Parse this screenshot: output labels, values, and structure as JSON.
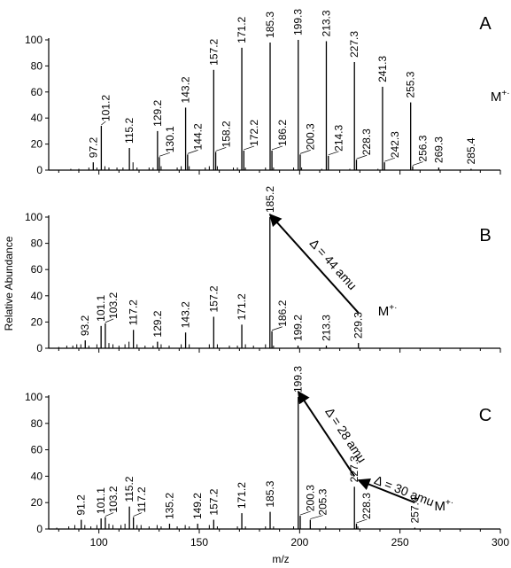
{
  "figure": {
    "ylabel": "Relative Abundance",
    "xlabel": "m/z",
    "x_ticks": [
      100,
      150,
      200,
      250,
      300
    ],
    "y_ticks": [
      0,
      20,
      40,
      60,
      80,
      100
    ]
  },
  "chart_data": [
    {
      "type": "bar",
      "panel": "A",
      "xlim": [
        75,
        300
      ],
      "ylim": [
        0,
        100
      ],
      "peaks": [
        {
          "mz": 97.2,
          "intensity": 6,
          "label": "97.2"
        },
        {
          "mz": 101.2,
          "intensity": 34,
          "label": "101.2"
        },
        {
          "mz": 115.2,
          "intensity": 17,
          "label": "115.2"
        },
        {
          "mz": 129.2,
          "intensity": 30,
          "label": "129.2"
        },
        {
          "mz": 130.1,
          "intensity": 10,
          "label": "130.1"
        },
        {
          "mz": 143.2,
          "intensity": 48,
          "label": "143.2"
        },
        {
          "mz": 144.2,
          "intensity": 12,
          "label": "144.2"
        },
        {
          "mz": 157.2,
          "intensity": 77,
          "label": "157.2"
        },
        {
          "mz": 158.2,
          "intensity": 14,
          "label": "158.2"
        },
        {
          "mz": 171.2,
          "intensity": 94,
          "label": "171.2"
        },
        {
          "mz": 172.2,
          "intensity": 15,
          "label": "172.2"
        },
        {
          "mz": 185.3,
          "intensity": 98,
          "label": "185.3"
        },
        {
          "mz": 186.2,
          "intensity": 15,
          "label": "186.2"
        },
        {
          "mz": 199.3,
          "intensity": 100,
          "label": "199.3"
        },
        {
          "mz": 200.3,
          "intensity": 12,
          "label": "200.3"
        },
        {
          "mz": 213.3,
          "intensity": 99,
          "label": "213.3"
        },
        {
          "mz": 214.3,
          "intensity": 11,
          "label": "214.3"
        },
        {
          "mz": 227.3,
          "intensity": 83,
          "label": "227.3"
        },
        {
          "mz": 228.3,
          "intensity": 8,
          "label": "228.3"
        },
        {
          "mz": 241.3,
          "intensity": 64,
          "label": "241.3"
        },
        {
          "mz": 242.3,
          "intensity": 6,
          "label": "242.3"
        },
        {
          "mz": 255.3,
          "intensity": 52,
          "label": "255.3"
        },
        {
          "mz": 256.3,
          "intensity": 3,
          "label": "256.3"
        },
        {
          "mz": 269.3,
          "intensity": 2,
          "label": "269.3"
        },
        {
          "mz": 285.4,
          "intensity": 1,
          "label": "285.4"
        }
      ],
      "minor_peaks": [
        {
          "mz": 86,
          "intensity": 1
        },
        {
          "mz": 90,
          "intensity": 1
        },
        {
          "mz": 95,
          "intensity": 2
        },
        {
          "mz": 99,
          "intensity": 2
        },
        {
          "mz": 103,
          "intensity": 3
        },
        {
          "mz": 105,
          "intensity": 2
        },
        {
          "mz": 109,
          "intensity": 2
        },
        {
          "mz": 112,
          "intensity": 2
        },
        {
          "mz": 117,
          "intensity": 6
        },
        {
          "mz": 119,
          "intensity": 2
        },
        {
          "mz": 125,
          "intensity": 2
        },
        {
          "mz": 127,
          "intensity": 2
        },
        {
          "mz": 131,
          "intensity": 3
        },
        {
          "mz": 139,
          "intensity": 2
        },
        {
          "mz": 141,
          "intensity": 3
        },
        {
          "mz": 145,
          "intensity": 3
        },
        {
          "mz": 153,
          "intensity": 2
        },
        {
          "mz": 155,
          "intensity": 3
        },
        {
          "mz": 159,
          "intensity": 3
        },
        {
          "mz": 167,
          "intensity": 2
        },
        {
          "mz": 169,
          "intensity": 2
        },
        {
          "mz": 173,
          "intensity": 2
        },
        {
          "mz": 183,
          "intensity": 2
        },
        {
          "mz": 187,
          "intensity": 2
        },
        {
          "mz": 197,
          "intensity": 2
        },
        {
          "mz": 201,
          "intensity": 2
        },
        {
          "mz": 211,
          "intensity": 1
        },
        {
          "mz": 225,
          "intensity": 1
        },
        {
          "mz": 239,
          "intensity": 1
        }
      ],
      "annotations": [
        {
          "text": "M",
          "sup": "+·",
          "near_mz": 285.4,
          "level": 53
        }
      ]
    },
    {
      "type": "bar",
      "panel": "B",
      "xlim": [
        75,
        300
      ],
      "ylim": [
        0,
        100
      ],
      "peaks": [
        {
          "mz": 93.2,
          "intensity": 6,
          "label": "93.2"
        },
        {
          "mz": 101.1,
          "intensity": 17,
          "label": "101.1"
        },
        {
          "mz": 103.2,
          "intensity": 19,
          "label": "103.2"
        },
        {
          "mz": 117.2,
          "intensity": 14,
          "label": "117.2"
        },
        {
          "mz": 129.2,
          "intensity": 5,
          "label": "129.2"
        },
        {
          "mz": 143.2,
          "intensity": 12,
          "label": "143.2"
        },
        {
          "mz": 157.2,
          "intensity": 24,
          "label": "157.2"
        },
        {
          "mz": 171.2,
          "intensity": 18,
          "label": "171.2"
        },
        {
          "mz": 185.2,
          "intensity": 100,
          "label": "185.2"
        },
        {
          "mz": 186.2,
          "intensity": 13,
          "label": "186.2"
        },
        {
          "mz": 199.2,
          "intensity": 2,
          "label": "199.2"
        },
        {
          "mz": 213.3,
          "intensity": 2,
          "label": "213.3"
        },
        {
          "mz": 229.3,
          "intensity": 4,
          "label": "229.3"
        }
      ],
      "minor_peaks": [
        {
          "mz": 80,
          "intensity": 1
        },
        {
          "mz": 84,
          "intensity": 2
        },
        {
          "mz": 87,
          "intensity": 2
        },
        {
          "mz": 89,
          "intensity": 3
        },
        {
          "mz": 91,
          "intensity": 3
        },
        {
          "mz": 95,
          "intensity": 2
        },
        {
          "mz": 99,
          "intensity": 3
        },
        {
          "mz": 105,
          "intensity": 4
        },
        {
          "mz": 107,
          "intensity": 3
        },
        {
          "mz": 110,
          "intensity": 2
        },
        {
          "mz": 113,
          "intensity": 3
        },
        {
          "mz": 115,
          "intensity": 5
        },
        {
          "mz": 119,
          "intensity": 3
        },
        {
          "mz": 123,
          "intensity": 2
        },
        {
          "mz": 127,
          "intensity": 2
        },
        {
          "mz": 131,
          "intensity": 3
        },
        {
          "mz": 135,
          "intensity": 2
        },
        {
          "mz": 141,
          "intensity": 3
        },
        {
          "mz": 145,
          "intensity": 3
        },
        {
          "mz": 155,
          "intensity": 3
        },
        {
          "mz": 159,
          "intensity": 3
        },
        {
          "mz": 165,
          "intensity": 2
        },
        {
          "mz": 169,
          "intensity": 2
        },
        {
          "mz": 173,
          "intensity": 3
        },
        {
          "mz": 177,
          "intensity": 2
        },
        {
          "mz": 183,
          "intensity": 3
        },
        {
          "mz": 187,
          "intensity": 2
        }
      ],
      "annotations": [
        {
          "text": "M",
          "sup": "+·",
          "near_mz": 229.3,
          "level": 25
        },
        {
          "text": "Δ = 44 amu",
          "type": "arrow",
          "from_mz": 229.3,
          "from_level": 27,
          "to_mz": 185.2,
          "to_level": 102
        }
      ]
    },
    {
      "type": "bar",
      "panel": "C",
      "xlim": [
        75,
        300
      ],
      "ylim": [
        0,
        100
      ],
      "peaks": [
        {
          "mz": 91.2,
          "intensity": 7,
          "label": "91.2"
        },
        {
          "mz": 101.1,
          "intensity": 8,
          "label": "101.1"
        },
        {
          "mz": 103.2,
          "intensity": 9,
          "label": "103.2"
        },
        {
          "mz": 115.2,
          "intensity": 17,
          "label": "115.2"
        },
        {
          "mz": 117.2,
          "intensity": 9,
          "label": "117.2"
        },
        {
          "mz": 135.2,
          "intensity": 4,
          "label": "135.2"
        },
        {
          "mz": 149.2,
          "intensity": 4,
          "label": "149.2"
        },
        {
          "mz": 157.2,
          "intensity": 7,
          "label": "157.2"
        },
        {
          "mz": 171.2,
          "intensity": 12,
          "label": "171.2"
        },
        {
          "mz": 185.3,
          "intensity": 13,
          "label": "185.3"
        },
        {
          "mz": 199.3,
          "intensity": 100,
          "label": "199.3"
        },
        {
          "mz": 200.3,
          "intensity": 10,
          "label": "200.3"
        },
        {
          "mz": 205.3,
          "intensity": 7,
          "label": "205.3"
        },
        {
          "mz": 227.3,
          "intensity": 32,
          "label": "227.3"
        },
        {
          "mz": 228.3,
          "intensity": 4,
          "label": "228.3"
        },
        {
          "mz": 257.4,
          "intensity": 1,
          "label": "257.4"
        }
      ],
      "minor_peaks": [
        {
          "mz": 79,
          "intensity": 1
        },
        {
          "mz": 85,
          "intensity": 2
        },
        {
          "mz": 88,
          "intensity": 3
        },
        {
          "mz": 93,
          "intensity": 3
        },
        {
          "mz": 96,
          "intensity": 2
        },
        {
          "mz": 99,
          "intensity": 3
        },
        {
          "mz": 105,
          "intensity": 4
        },
        {
          "mz": 107,
          "intensity": 3
        },
        {
          "mz": 111,
          "intensity": 3
        },
        {
          "mz": 113,
          "intensity": 4
        },
        {
          "mz": 119,
          "intensity": 3
        },
        {
          "mz": 121,
          "intensity": 3
        },
        {
          "mz": 125,
          "intensity": 2
        },
        {
          "mz": 129,
          "intensity": 3
        },
        {
          "mz": 131,
          "intensity": 2
        },
        {
          "mz": 139,
          "intensity": 2
        },
        {
          "mz": 143,
          "intensity": 3
        },
        {
          "mz": 145,
          "intensity": 2
        },
        {
          "mz": 155,
          "intensity": 3
        },
        {
          "mz": 159,
          "intensity": 2
        },
        {
          "mz": 169,
          "intensity": 2
        },
        {
          "mz": 173,
          "intensity": 2
        },
        {
          "mz": 183,
          "intensity": 2
        },
        {
          "mz": 187,
          "intensity": 2
        },
        {
          "mz": 197,
          "intensity": 2
        },
        {
          "mz": 213,
          "intensity": 2
        },
        {
          "mz": 229,
          "intensity": 2
        }
      ],
      "annotations": [
        {
          "text": "M",
          "sup": "+·",
          "near_mz": 257.4,
          "level": 14
        },
        {
          "text": "Δ = 28 amu",
          "type": "arrow",
          "from_mz": 227.3,
          "from_level": 40,
          "to_mz": 199.3,
          "to_level": 104
        },
        {
          "text": "Δ = 30 amu",
          "type": "arrow",
          "from_mz": 257.4,
          "from_level": 20,
          "to_mz": 229.3,
          "to_level": 37
        }
      ]
    }
  ]
}
